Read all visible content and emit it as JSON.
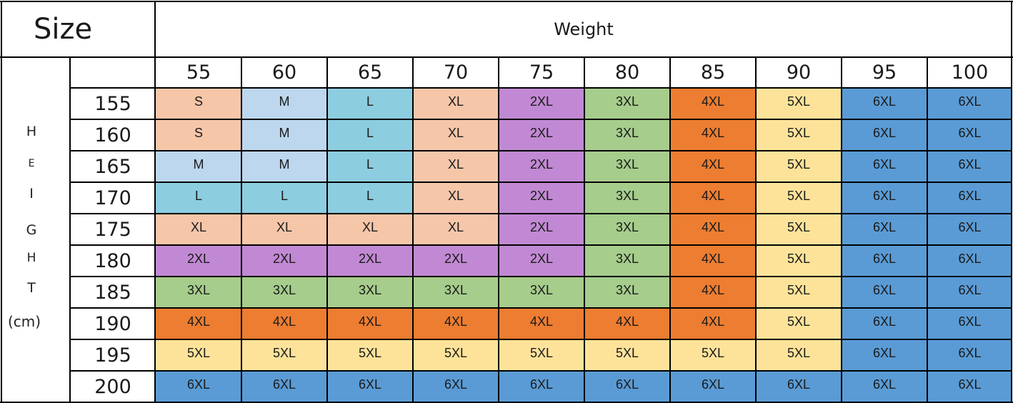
{
  "title": "Size",
  "weight_label": "Weight",
  "height_label_letters": [
    "H",
    "E",
    "I",
    "G",
    "H",
    "T",
    "(cm)"
  ],
  "weights": [
    "55",
    "60",
    "65",
    "70",
    "75",
    "80",
    "85",
    "90",
    "95",
    "100"
  ],
  "heights": [
    "155",
    "160",
    "165",
    "170",
    "175",
    "180",
    "185",
    "190",
    "195",
    "200"
  ],
  "sizes": [
    [
      "S",
      "M",
      "L",
      "XL",
      "2XL",
      "3XL",
      "4XL",
      "5XL",
      "6XL",
      "6XL"
    ],
    [
      "S",
      "M",
      "L",
      "XL",
      "2XL",
      "3XL",
      "4XL",
      "5XL",
      "6XL",
      "6XL"
    ],
    [
      "M",
      "M",
      "L",
      "XL",
      "2XL",
      "3XL",
      "4XL",
      "5XL",
      "6XL",
      "6XL"
    ],
    [
      "L",
      "L",
      "L",
      "XL",
      "2XL",
      "3XL",
      "4XL",
      "5XL",
      "6XL",
      "6XL"
    ],
    [
      "XL",
      "XL",
      "XL",
      "XL",
      "2XL",
      "3XL",
      "4XL",
      "5XL",
      "6XL",
      "6XL"
    ],
    [
      "2XL",
      "2XL",
      "2XL",
      "2XL",
      "2XL",
      "3XL",
      "4XL",
      "5XL",
      "6XL",
      "6XL"
    ],
    [
      "3XL",
      "3XL",
      "3XL",
      "3XL",
      "3XL",
      "3XL",
      "4XL",
      "5XL",
      "6XL",
      "6XL"
    ],
    [
      "4XL",
      "4XL",
      "4XL",
      "4XL",
      "4XL",
      "4XL",
      "4XL",
      "5XL",
      "6XL",
      "6XL"
    ],
    [
      "5XL",
      "5XL",
      "5XL",
      "5XL",
      "5XL",
      "5XL",
      "5XL",
      "5XL",
      "6XL",
      "6XL"
    ],
    [
      "6XL",
      "6XL",
      "6XL",
      "6XL",
      "6XL",
      "6XL",
      "6XL",
      "6XL",
      "6XL",
      "6XL"
    ]
  ],
  "size_colors": {
    "S": "#f6c6a9",
    "M": "#bdd7ee",
    "L": "#8dcde0",
    "XL": "#f6c6a9",
    "2XL": "#c189d3",
    "3XL": "#a6cd8c",
    "4XL": "#ed7d31",
    "5XL": "#fde39a",
    "6XL": "#5a9bd5"
  }
}
